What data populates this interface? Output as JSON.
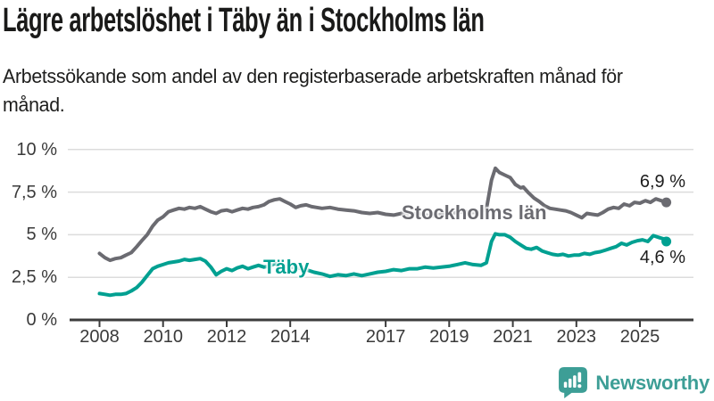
{
  "header": {
    "title": "Lägre arbetslöshet i Täby än i Stockholms län",
    "subtitle": "Arbetssökande som andel av den registerbaserade arbetskraften månad för månad."
  },
  "chart_data": {
    "type": "line",
    "title": "Lägre arbetslöshet i Täby än i Stockholms län",
    "unit": "%",
    "grid": "horizontal",
    "legend": "inline-labels",
    "x_axis": {
      "range": [
        2008,
        2025.83
      ],
      "ticks": [
        {
          "value": 2008,
          "label": "2008"
        },
        {
          "value": 2010,
          "label": "2010"
        },
        {
          "value": 2012,
          "label": "2012"
        },
        {
          "value": 2014,
          "label": "2014"
        },
        {
          "value": 2017,
          "label": "2017"
        },
        {
          "value": 2019,
          "label": "2019"
        },
        {
          "value": 2021,
          "label": "2021"
        },
        {
          "value": 2023,
          "label": "2023"
        },
        {
          "value": 2025,
          "label": "2025"
        }
      ]
    },
    "y_axis": {
      "range": [
        0,
        10
      ],
      "ticks": [
        {
          "value": 10,
          "label": "10 %"
        },
        {
          "value": 7.5,
          "label": "7,5 %"
        },
        {
          "value": 5,
          "label": "5 %"
        },
        {
          "value": 2.5,
          "label": "2,5 %"
        },
        {
          "value": 0,
          "label": "0 %"
        }
      ]
    },
    "series": [
      {
        "name": "Stockholms län",
        "color": "#6b6b71",
        "end_label": "6,9 %",
        "end_value": 6.9,
        "points": [
          [
            2008.0,
            3.9
          ],
          [
            2008.17,
            3.65
          ],
          [
            2008.33,
            3.5
          ],
          [
            2008.5,
            3.6
          ],
          [
            2008.67,
            3.65
          ],
          [
            2008.83,
            3.8
          ],
          [
            2009.0,
            3.95
          ],
          [
            2009.17,
            4.3
          ],
          [
            2009.33,
            4.65
          ],
          [
            2009.5,
            5.0
          ],
          [
            2009.67,
            5.5
          ],
          [
            2009.83,
            5.85
          ],
          [
            2010.0,
            6.05
          ],
          [
            2010.17,
            6.35
          ],
          [
            2010.33,
            6.45
          ],
          [
            2010.5,
            6.55
          ],
          [
            2010.67,
            6.5
          ],
          [
            2010.83,
            6.6
          ],
          [
            2011.0,
            6.55
          ],
          [
            2011.17,
            6.65
          ],
          [
            2011.33,
            6.5
          ],
          [
            2011.5,
            6.35
          ],
          [
            2011.67,
            6.25
          ],
          [
            2011.83,
            6.4
          ],
          [
            2012.0,
            6.45
          ],
          [
            2012.17,
            6.35
          ],
          [
            2012.33,
            6.45
          ],
          [
            2012.5,
            6.55
          ],
          [
            2012.67,
            6.5
          ],
          [
            2012.83,
            6.6
          ],
          [
            2013.0,
            6.65
          ],
          [
            2013.17,
            6.75
          ],
          [
            2013.33,
            6.95
          ],
          [
            2013.5,
            7.05
          ],
          [
            2013.67,
            7.1
          ],
          [
            2013.83,
            6.95
          ],
          [
            2014.0,
            6.8
          ],
          [
            2014.17,
            6.6
          ],
          [
            2014.33,
            6.7
          ],
          [
            2014.5,
            6.75
          ],
          [
            2014.67,
            6.65
          ],
          [
            2014.83,
            6.6
          ],
          [
            2015.0,
            6.55
          ],
          [
            2015.25,
            6.6
          ],
          [
            2015.5,
            6.5
          ],
          [
            2015.75,
            6.45
          ],
          [
            2016.0,
            6.4
          ],
          [
            2016.25,
            6.3
          ],
          [
            2016.5,
            6.25
          ],
          [
            2016.75,
            6.3
          ],
          [
            2017.0,
            6.2
          ],
          [
            2017.25,
            6.15
          ],
          [
            2017.5,
            6.25
          ],
          [
            2017.75,
            6.2
          ],
          [
            2018.0,
            6.25
          ],
          [
            2018.25,
            6.15
          ],
          [
            2018.5,
            6.1
          ],
          [
            2018.75,
            6.2
          ],
          [
            2019.0,
            6.25
          ],
          [
            2019.25,
            6.3
          ],
          [
            2019.5,
            6.35
          ],
          [
            2019.75,
            6.3
          ],
          [
            2020.0,
            6.35
          ],
          [
            2020.17,
            6.5
          ],
          [
            2020.33,
            8.2
          ],
          [
            2020.45,
            8.9
          ],
          [
            2020.58,
            8.65
          ],
          [
            2020.75,
            8.5
          ],
          [
            2020.92,
            8.35
          ],
          [
            2021.08,
            7.95
          ],
          [
            2021.25,
            7.75
          ],
          [
            2021.33,
            7.8
          ],
          [
            2021.5,
            7.45
          ],
          [
            2021.67,
            7.15
          ],
          [
            2021.83,
            6.95
          ],
          [
            2022.0,
            6.7
          ],
          [
            2022.17,
            6.55
          ],
          [
            2022.33,
            6.5
          ],
          [
            2022.5,
            6.45
          ],
          [
            2022.67,
            6.4
          ],
          [
            2022.83,
            6.3
          ],
          [
            2023.0,
            6.15
          ],
          [
            2023.17,
            6.0
          ],
          [
            2023.33,
            6.25
          ],
          [
            2023.5,
            6.2
          ],
          [
            2023.67,
            6.15
          ],
          [
            2023.83,
            6.3
          ],
          [
            2024.0,
            6.5
          ],
          [
            2024.17,
            6.6
          ],
          [
            2024.33,
            6.55
          ],
          [
            2024.5,
            6.8
          ],
          [
            2024.67,
            6.7
          ],
          [
            2024.83,
            6.9
          ],
          [
            2025.0,
            6.85
          ],
          [
            2025.17,
            7.0
          ],
          [
            2025.33,
            6.9
          ],
          [
            2025.5,
            7.1
          ],
          [
            2025.67,
            7.0
          ],
          [
            2025.83,
            6.9
          ]
        ]
      },
      {
        "name": "Täby",
        "color": "#00a091",
        "end_label": "4,6 %",
        "end_value": 4.6,
        "points": [
          [
            2008.0,
            1.55
          ],
          [
            2008.17,
            1.5
          ],
          [
            2008.33,
            1.45
          ],
          [
            2008.5,
            1.5
          ],
          [
            2008.67,
            1.5
          ],
          [
            2008.83,
            1.55
          ],
          [
            2009.0,
            1.7
          ],
          [
            2009.17,
            1.9
          ],
          [
            2009.33,
            2.2
          ],
          [
            2009.5,
            2.6
          ],
          [
            2009.67,
            3.0
          ],
          [
            2009.83,
            3.15
          ],
          [
            2010.0,
            3.25
          ],
          [
            2010.17,
            3.35
          ],
          [
            2010.33,
            3.4
          ],
          [
            2010.5,
            3.45
          ],
          [
            2010.67,
            3.55
          ],
          [
            2010.83,
            3.5
          ],
          [
            2011.0,
            3.55
          ],
          [
            2011.17,
            3.6
          ],
          [
            2011.33,
            3.45
          ],
          [
            2011.5,
            3.1
          ],
          [
            2011.67,
            2.65
          ],
          [
            2011.83,
            2.85
          ],
          [
            2012.0,
            3.0
          ],
          [
            2012.17,
            2.9
          ],
          [
            2012.33,
            3.05
          ],
          [
            2012.5,
            3.15
          ],
          [
            2012.67,
            3.0
          ],
          [
            2012.83,
            3.1
          ],
          [
            2013.0,
            3.2
          ],
          [
            2013.17,
            3.1
          ],
          [
            2013.33,
            3.15
          ],
          [
            2013.5,
            3.3
          ],
          [
            2013.67,
            3.25
          ],
          [
            2013.83,
            3.15
          ],
          [
            2014.0,
            3.1
          ],
          [
            2014.25,
            3.05
          ],
          [
            2014.5,
            2.95
          ],
          [
            2014.75,
            2.8
          ],
          [
            2015.0,
            2.7
          ],
          [
            2015.25,
            2.55
          ],
          [
            2015.5,
            2.65
          ],
          [
            2015.75,
            2.6
          ],
          [
            2016.0,
            2.7
          ],
          [
            2016.25,
            2.6
          ],
          [
            2016.5,
            2.7
          ],
          [
            2016.75,
            2.8
          ],
          [
            2017.0,
            2.85
          ],
          [
            2017.25,
            2.95
          ],
          [
            2017.5,
            2.9
          ],
          [
            2017.75,
            3.0
          ],
          [
            2018.0,
            3.0
          ],
          [
            2018.25,
            3.1
          ],
          [
            2018.5,
            3.05
          ],
          [
            2018.75,
            3.1
          ],
          [
            2019.0,
            3.15
          ],
          [
            2019.25,
            3.25
          ],
          [
            2019.5,
            3.35
          ],
          [
            2019.75,
            3.25
          ],
          [
            2020.0,
            3.2
          ],
          [
            2020.17,
            3.35
          ],
          [
            2020.33,
            4.6
          ],
          [
            2020.45,
            5.05
          ],
          [
            2020.58,
            5.0
          ],
          [
            2020.75,
            5.0
          ],
          [
            2020.92,
            4.85
          ],
          [
            2021.08,
            4.6
          ],
          [
            2021.25,
            4.4
          ],
          [
            2021.42,
            4.2
          ],
          [
            2021.58,
            4.15
          ],
          [
            2021.75,
            4.25
          ],
          [
            2021.92,
            4.05
          ],
          [
            2022.08,
            3.95
          ],
          [
            2022.25,
            3.85
          ],
          [
            2022.42,
            3.8
          ],
          [
            2022.58,
            3.85
          ],
          [
            2022.75,
            3.75
          ],
          [
            2022.92,
            3.8
          ],
          [
            2023.08,
            3.8
          ],
          [
            2023.25,
            3.9
          ],
          [
            2023.42,
            3.85
          ],
          [
            2023.58,
            3.95
          ],
          [
            2023.75,
            4.0
          ],
          [
            2023.92,
            4.1
          ],
          [
            2024.08,
            4.2
          ],
          [
            2024.25,
            4.3
          ],
          [
            2024.42,
            4.5
          ],
          [
            2024.58,
            4.4
          ],
          [
            2024.75,
            4.55
          ],
          [
            2024.92,
            4.65
          ],
          [
            2025.08,
            4.7
          ],
          [
            2025.25,
            4.6
          ],
          [
            2025.42,
            4.95
          ],
          [
            2025.58,
            4.85
          ],
          [
            2025.75,
            4.75
          ],
          [
            2025.83,
            4.6
          ]
        ]
      }
    ]
  },
  "footer": {
    "brand": "Newsworthy",
    "brand_color": "#3d9e96",
    "logo_icon": "bar-chart-speech-bubble-icon"
  }
}
